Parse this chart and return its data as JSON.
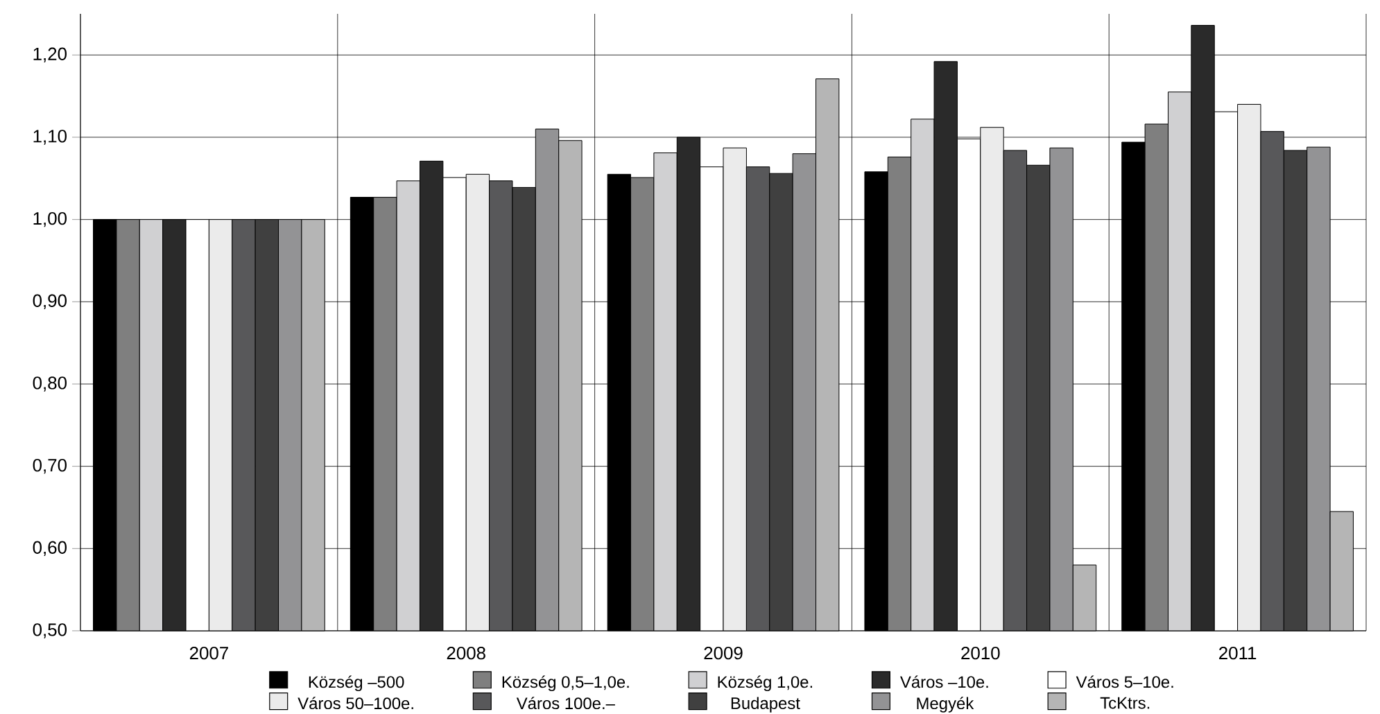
{
  "chart_data": {
    "type": "bar",
    "categories": [
      "2007",
      "2008",
      "2009",
      "2010",
      "2011"
    ],
    "series": [
      {
        "name": "Község –500",
        "color": "#000000",
        "values": [
          1.0,
          1.027,
          1.055,
          1.058,
          1.094
        ]
      },
      {
        "name": "Község 0,5–1,0e.",
        "color": "#7f7f7f",
        "values": [
          1.0,
          1.027,
          1.051,
          1.076,
          1.116
        ]
      },
      {
        "name": "Község 1,0e.",
        "color": "#d0d0d2",
        "values": [
          1.0,
          1.047,
          1.081,
          1.122,
          1.155
        ]
      },
      {
        "name": "Város –10e.",
        "color": "#2a2a2a",
        "values": [
          1.0,
          1.071,
          1.1,
          1.192,
          1.236
        ]
      },
      {
        "name": "Város 5–10e.",
        "color": "#ffffff",
        "values": [
          1.0,
          1.051,
          1.064,
          1.098,
          1.131
        ]
      },
      {
        "name": "Város 50–100e.",
        "color": "#ebebeb",
        "values": [
          1.0,
          1.055,
          1.087,
          1.112,
          1.14
        ]
      },
      {
        "name": "Város 100e.–",
        "color": "#58585a",
        "values": [
          1.0,
          1.047,
          1.064,
          1.084,
          1.107
        ]
      },
      {
        "name": "Budapest",
        "color": "#404040",
        "values": [
          1.0,
          1.039,
          1.056,
          1.066,
          1.084
        ]
      },
      {
        "name": "Megyék",
        "color": "#939395",
        "values": [
          1.0,
          1.11,
          1.08,
          1.087,
          1.088
        ]
      },
      {
        "name": "TcKtrs.",
        "color": "#b5b5b5",
        "values": [
          1.0,
          1.096,
          1.171,
          0.58,
          0.645
        ]
      }
    ],
    "ylim": [
      0.5,
      1.25
    ],
    "yticks": [
      {
        "value": 0.5,
        "label": "0,50"
      },
      {
        "value": 0.6,
        "label": "0,60"
      },
      {
        "value": 0.7,
        "label": "0,70"
      },
      {
        "value": 0.8,
        "label": "0,80"
      },
      {
        "value": 0.9,
        "label": "0,90"
      },
      {
        "value": 1.0,
        "label": "1,00"
      },
      {
        "value": 1.1,
        "label": "1,10"
      },
      {
        "value": 1.2,
        "label": "1,20"
      }
    ],
    "grid": true,
    "legend": "bottom"
  }
}
